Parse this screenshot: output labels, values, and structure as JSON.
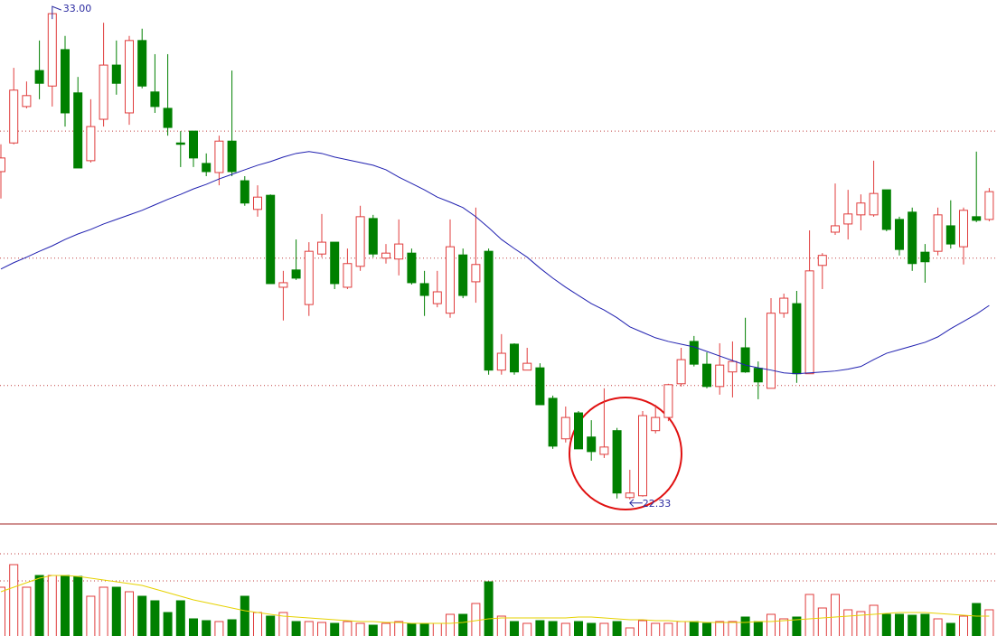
{
  "chart_data": [
    {
      "type": "candlestick",
      "open": [
        29.53,
        30.16,
        30.96,
        31.75,
        31.41,
        32.21,
        31.26,
        29.77,
        30.68,
        31.87,
        30.82,
        32.41,
        31.28,
        30.92,
        30.16,
        30.42,
        29.71,
        29.51,
        30.2,
        29.33,
        28.7,
        29.01,
        26.99,
        27.37,
        26.61,
        27.72,
        27.98,
        26.99,
        27.45,
        28.5,
        27.63,
        27.61,
        27.74,
        27.07,
        26.63,
        26.42,
        27.7,
        27.11,
        27.78,
        25.17,
        25.74,
        25.17,
        25.22,
        24.55,
        23.66,
        24.23,
        23.7,
        23.32,
        23.84,
        22.37,
        22.41,
        23.84,
        24.13,
        24.87,
        25.8,
        25.3,
        24.81,
        25.13,
        25.66,
        25.21,
        24.77,
        26.42,
        26.63,
        25.09,
        27.47,
        28.2,
        28.38,
        28.58,
        28.58,
        29.13,
        28.48,
        28.64,
        27.76,
        27.78,
        28.34,
        27.88,
        28.54,
        28.48
      ],
      "high": [
        30.13,
        31.81,
        31.51,
        32.41,
        33.0,
        32.51,
        31.61,
        31.12,
        32.8,
        32.41,
        32.51,
        32.67,
        32.11,
        32.11,
        30.42,
        30.42,
        29.93,
        30.32,
        31.75,
        29.43,
        29.23,
        29.03,
        27.35,
        28.04,
        27.98,
        28.6,
        27.98,
        27.84,
        28.78,
        28.58,
        27.94,
        28.48,
        27.84,
        27.35,
        27.35,
        28.48,
        27.84,
        28.74,
        27.84,
        25.96,
        25.76,
        25.66,
        25.32,
        24.61,
        24.37,
        24.27,
        24.07,
        24.77,
        23.9,
        22.98,
        24.27,
        24.41,
        24.87,
        25.66,
        25.92,
        25.56,
        25.76,
        25.8,
        26.32,
        25.36,
        26.75,
        26.85,
        26.91,
        28.24,
        27.74,
        29.27,
        29.13,
        29.03,
        29.77,
        29.13,
        28.54,
        28.74,
        27.94,
        28.74,
        28.9,
        28.74,
        29.97,
        29.17
      ],
      "low": [
        28.94,
        30.13,
        30.92,
        31.12,
        30.96,
        30.52,
        29.61,
        29.73,
        30.52,
        31.22,
        30.56,
        31.36,
        30.82,
        30.32,
        29.63,
        29.63,
        29.43,
        29.23,
        29.43,
        28.78,
        28.54,
        27.07,
        26.26,
        27.15,
        26.36,
        27.65,
        26.95,
        26.95,
        27.35,
        27.65,
        27.51,
        27.25,
        27.05,
        26.36,
        26.55,
        26.32,
        26.75,
        26.65,
        25.07,
        25.07,
        25.07,
        25.17,
        24.41,
        23.44,
        23.58,
        23.44,
        23.18,
        23.24,
        22.35,
        22.33,
        22.39,
        23.78,
        24.05,
        24.81,
        25.25,
        24.77,
        24.63,
        24.57,
        25.11,
        24.53,
        24.77,
        26.32,
        24.89,
        25.09,
        26.95,
        28.14,
        28.04,
        28.24,
        28.54,
        28.22,
        27.69,
        27.35,
        27.09,
        27.69,
        27.84,
        27.49,
        28.42,
        28.44
      ],
      "close": [
        29.83,
        31.32,
        31.2,
        31.47,
        33.0,
        30.82,
        29.61,
        30.52,
        31.87,
        31.47,
        32.41,
        31.41,
        30.96,
        30.5,
        30.13,
        29.83,
        29.53,
        30.2,
        29.53,
        28.84,
        28.97,
        27.07,
        27.09,
        27.19,
        27.78,
        27.98,
        27.07,
        27.51,
        28.54,
        27.72,
        27.74,
        27.94,
        27.09,
        26.81,
        26.89,
        27.88,
        26.81,
        27.49,
        25.17,
        25.54,
        25.13,
        25.32,
        24.41,
        23.5,
        24.13,
        23.44,
        23.38,
        23.48,
        22.47,
        22.47,
        24.17,
        24.13,
        24.85,
        25.4,
        25.3,
        24.81,
        25.28,
        25.36,
        25.13,
        24.91,
        26.42,
        26.75,
        25.09,
        27.35,
        27.69,
        28.34,
        28.6,
        28.84,
        29.05,
        28.26,
        27.82,
        27.51,
        27.55,
        28.58,
        27.94,
        28.68,
        28.46,
        29.09
      ],
      "ma": {
        "color": "#2020b0",
        "values": [
          27.39,
          27.53,
          27.65,
          27.78,
          27.9,
          28.04,
          28.16,
          28.26,
          28.38,
          28.48,
          28.58,
          28.68,
          28.8,
          28.92,
          29.03,
          29.15,
          29.25,
          29.37,
          29.47,
          29.57,
          29.67,
          29.75,
          29.85,
          29.93,
          29.97,
          29.93,
          29.85,
          29.79,
          29.73,
          29.67,
          29.57,
          29.41,
          29.27,
          29.13,
          28.97,
          28.86,
          28.74,
          28.54,
          28.3,
          28.04,
          27.84,
          27.65,
          27.41,
          27.19,
          26.99,
          26.81,
          26.63,
          26.49,
          26.32,
          26.12,
          26.0,
          25.88,
          25.8,
          25.74,
          25.68,
          25.58,
          25.48,
          25.38,
          25.28,
          25.22,
          25.17,
          25.11,
          25.09,
          25.11,
          25.13,
          25.15,
          25.19,
          25.25,
          25.4,
          25.54,
          25.62,
          25.7,
          25.78,
          25.9,
          26.08,
          26.24,
          26.4,
          26.59
        ]
      },
      "up_color": "#e03c3c",
      "down_color": "#008000",
      "ylim": [
        21.79,
        33.3
      ],
      "ygrid": [
        30.42,
        27.63,
        24.83
      ],
      "max_label": "33.00",
      "min_label": "22.33"
    },
    {
      "type": "volume",
      "values": [
        54,
        79,
        54,
        67,
        67,
        67,
        66,
        44,
        54,
        54,
        49,
        44,
        39,
        26,
        39,
        19,
        17,
        16,
        18,
        44,
        26,
        22,
        26,
        16,
        16,
        15,
        14,
        16,
        14,
        12,
        14,
        16,
        14,
        14,
        14,
        24,
        24,
        36,
        60,
        22,
        16,
        14,
        17,
        16,
        14,
        16,
        14,
        14,
        16,
        9,
        17,
        14,
        14,
        16,
        16,
        14,
        16,
        16,
        21,
        16,
        24,
        19,
        21,
        46,
        31,
        46,
        29,
        27,
        34,
        24,
        24,
        23,
        24,
        19,
        14,
        22,
        36,
        29
      ],
      "ma": {
        "color": "#e6d200",
        "values": [
          49,
          54,
          59,
          64,
          67,
          67,
          66,
          64,
          62,
          60,
          58,
          56,
          52,
          48,
          44,
          40,
          37,
          34,
          31,
          28,
          26,
          24,
          22,
          21,
          20,
          19,
          18,
          17,
          16,
          16,
          15,
          15,
          14,
          14,
          14,
          14,
          15,
          17,
          19,
          20,
          20,
          20,
          20,
          20,
          20,
          21,
          21,
          20,
          19,
          18,
          18,
          17,
          17,
          16,
          16,
          15,
          15,
          15,
          15,
          16,
          16,
          17,
          18,
          19,
          20,
          21,
          22,
          23,
          24,
          25,
          26,
          26,
          26,
          25,
          24,
          23,
          22,
          22
        ]
      },
      "ylim": [
        0,
        124
      ],
      "ygrid": [
        91,
        61
      ]
    }
  ]
}
